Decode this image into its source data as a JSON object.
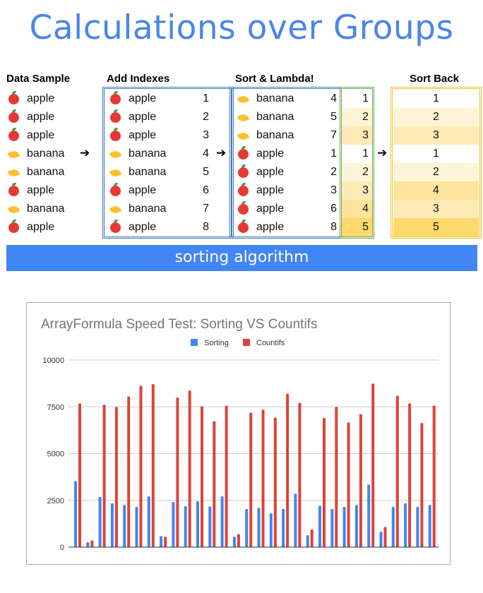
{
  "title": "Calculations over Groups",
  "headers": {
    "data_sample": "Data Sample",
    "add_indexes": "Add Indexes",
    "sort_lambda": "Sort & Lambda!",
    "sort_back": "Sort Back"
  },
  "data_sample": [
    {
      "fruit": "apple"
    },
    {
      "fruit": "apple"
    },
    {
      "fruit": "apple"
    },
    {
      "fruit": "banana"
    },
    {
      "fruit": "banana"
    },
    {
      "fruit": "apple"
    },
    {
      "fruit": "banana"
    },
    {
      "fruit": "apple"
    }
  ],
  "add_indexes": [
    {
      "fruit": "apple",
      "idx": "1"
    },
    {
      "fruit": "apple",
      "idx": "2"
    },
    {
      "fruit": "apple",
      "idx": "3"
    },
    {
      "fruit": "banana",
      "idx": "4"
    },
    {
      "fruit": "banana",
      "idx": "5"
    },
    {
      "fruit": "apple",
      "idx": "6"
    },
    {
      "fruit": "banana",
      "idx": "7"
    },
    {
      "fruit": "apple",
      "idx": "8"
    }
  ],
  "sort_lambda": [
    {
      "fruit": "banana",
      "idx": "4",
      "rank": "1"
    },
    {
      "fruit": "banana",
      "idx": "5",
      "rank": "2"
    },
    {
      "fruit": "banana",
      "idx": "7",
      "rank": "3"
    },
    {
      "fruit": "apple",
      "idx": "1",
      "rank": "1"
    },
    {
      "fruit": "apple",
      "idx": "2",
      "rank": "2"
    },
    {
      "fruit": "apple",
      "idx": "3",
      "rank": "3"
    },
    {
      "fruit": "apple",
      "idx": "6",
      "rank": "4"
    },
    {
      "fruit": "apple",
      "idx": "8",
      "rank": "5"
    }
  ],
  "sort_back": [
    "1",
    "2",
    "3",
    "1",
    "2",
    "4",
    "3",
    "5"
  ],
  "arrow": "➔",
  "banner": "sorting algorithm",
  "colors": {
    "title": "#4a86e8",
    "banner": "#4285f4",
    "sorting": "#4285f4",
    "countifs": "#db4437",
    "rank_scale": [
      "#ffffff",
      "#fef4d8",
      "#feeab6",
      "#fde39c",
      "#fdd86a"
    ]
  },
  "chart_data": {
    "type": "bar",
    "title": "ArrayFormula Speed Test: Sorting VS Countifs",
    "legend_position": "top",
    "xlabel": "",
    "ylabel": "",
    "ylim": [
      0,
      10000
    ],
    "yticks": [
      "0",
      "2500",
      "5000",
      "7500",
      "10000"
    ],
    "grid": true,
    "series": [
      {
        "name": "Sorting",
        "values": [
          3530,
          260,
          2680,
          2340,
          2250,
          2150,
          2710,
          590,
          2410,
          2190,
          2450,
          2170,
          2710,
          550,
          2040,
          2100,
          1800,
          2040,
          2860,
          630,
          2210,
          2040,
          2150,
          2250,
          3340,
          820,
          2150,
          2340,
          2150,
          2250
        ]
      },
      {
        "name": "Countifs",
        "values": [
          7680,
          360,
          7610,
          7490,
          8050,
          8620,
          8710,
          550,
          7990,
          8370,
          7530,
          6730,
          7560,
          700,
          7190,
          7350,
          6920,
          8200,
          7710,
          940,
          6900,
          7490,
          6660,
          7110,
          8740,
          1080,
          8090,
          7680,
          6630,
          7560
        ]
      }
    ]
  }
}
